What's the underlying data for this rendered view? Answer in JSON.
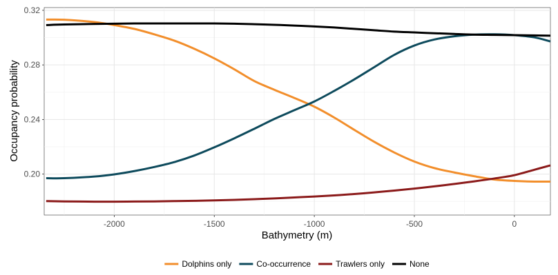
{
  "chart_data": {
    "type": "line",
    "title": "",
    "xlabel": "Bathymetry (m)",
    "ylabel": "Occupancy probability",
    "xlim": [
      -2350,
      180
    ],
    "ylim": [
      0.17,
      0.322
    ],
    "x_ticks": [
      -2000,
      -1500,
      -1000,
      -500,
      0
    ],
    "x_tick_labels": [
      "-2000",
      "-1500",
      "-1000",
      "-500",
      "0"
    ],
    "y_ticks": [
      0.2,
      0.24,
      0.28,
      0.32
    ],
    "y_tick_labels": [
      "0.20",
      "0.24",
      "0.28",
      "0.32"
    ],
    "grid": true,
    "legend_position": "bottom",
    "series": [
      {
        "name": "Dolphins only",
        "color": "#F28E2B",
        "x": [
          -2340,
          -2250,
          -2100,
          -2000,
          -1900,
          -1800,
          -1700,
          -1600,
          -1500,
          -1400,
          -1300,
          -1200,
          -1100,
          -1000,
          -900,
          -800,
          -700,
          -600,
          -500,
          -400,
          -300,
          -200,
          -100,
          0,
          100,
          180
        ],
        "y": [
          0.3132,
          0.3131,
          0.3114,
          0.3092,
          0.3064,
          0.3024,
          0.2978,
          0.2918,
          0.2848,
          0.2768,
          0.2682,
          0.2618,
          0.2558,
          0.2494,
          0.2414,
          0.2324,
          0.2236,
          0.2158,
          0.2092,
          0.2044,
          0.2012,
          0.1984,
          0.196,
          0.195,
          0.1945,
          0.1945
        ]
      },
      {
        "name": "Co-occurrence",
        "color": "#0D4A5C",
        "x": [
          -2340,
          -2250,
          -2100,
          -2000,
          -1900,
          -1800,
          -1700,
          -1600,
          -1500,
          -1400,
          -1300,
          -1200,
          -1100,
          -1000,
          -900,
          -800,
          -700,
          -600,
          -500,
          -400,
          -300,
          -200,
          -100,
          0,
          100,
          180
        ],
        "y": [
          0.197,
          0.197,
          0.1982,
          0.1998,
          0.2022,
          0.2052,
          0.2088,
          0.2136,
          0.2196,
          0.2262,
          0.2332,
          0.2404,
          0.2468,
          0.2532,
          0.261,
          0.2694,
          0.2784,
          0.2874,
          0.2942,
          0.2986,
          0.301,
          0.3022,
          0.3024,
          0.3018,
          0.3002,
          0.2972
        ]
      },
      {
        "name": "Trawlers only",
        "color": "#8B1A1A",
        "x": [
          -2340,
          -2250,
          -2100,
          -2000,
          -1900,
          -1800,
          -1700,
          -1600,
          -1500,
          -1400,
          -1300,
          -1200,
          -1100,
          -1000,
          -900,
          -800,
          -700,
          -600,
          -500,
          -400,
          -300,
          -200,
          -100,
          0,
          100,
          180
        ],
        "y": [
          0.1802,
          0.18,
          0.1798,
          0.1798,
          0.1799,
          0.18,
          0.1802,
          0.1804,
          0.1807,
          0.1811,
          0.1816,
          0.1822,
          0.1829,
          0.1836,
          0.1844,
          0.1854,
          0.1866,
          0.1879,
          0.1894,
          0.191,
          0.1928,
          0.1947,
          0.1968,
          0.1992,
          0.2032,
          0.2064
        ]
      },
      {
        "name": "None",
        "color": "#000000",
        "x": [
          -2340,
          -2250,
          -2100,
          -2000,
          -1900,
          -1800,
          -1700,
          -1600,
          -1500,
          -1400,
          -1300,
          -1200,
          -1100,
          -1000,
          -900,
          -800,
          -700,
          -600,
          -500,
          -400,
          -300,
          -200,
          -100,
          0,
          100,
          180
        ],
        "y": [
          0.3092,
          0.3096,
          0.31,
          0.3102,
          0.3104,
          0.3104,
          0.3104,
          0.3104,
          0.3104,
          0.3102,
          0.3098,
          0.3094,
          0.3088,
          0.3082,
          0.3074,
          0.3064,
          0.3054,
          0.3044,
          0.3038,
          0.3032,
          0.3027,
          0.3022,
          0.302,
          0.3018,
          0.3016,
          0.3014
        ]
      }
    ]
  }
}
